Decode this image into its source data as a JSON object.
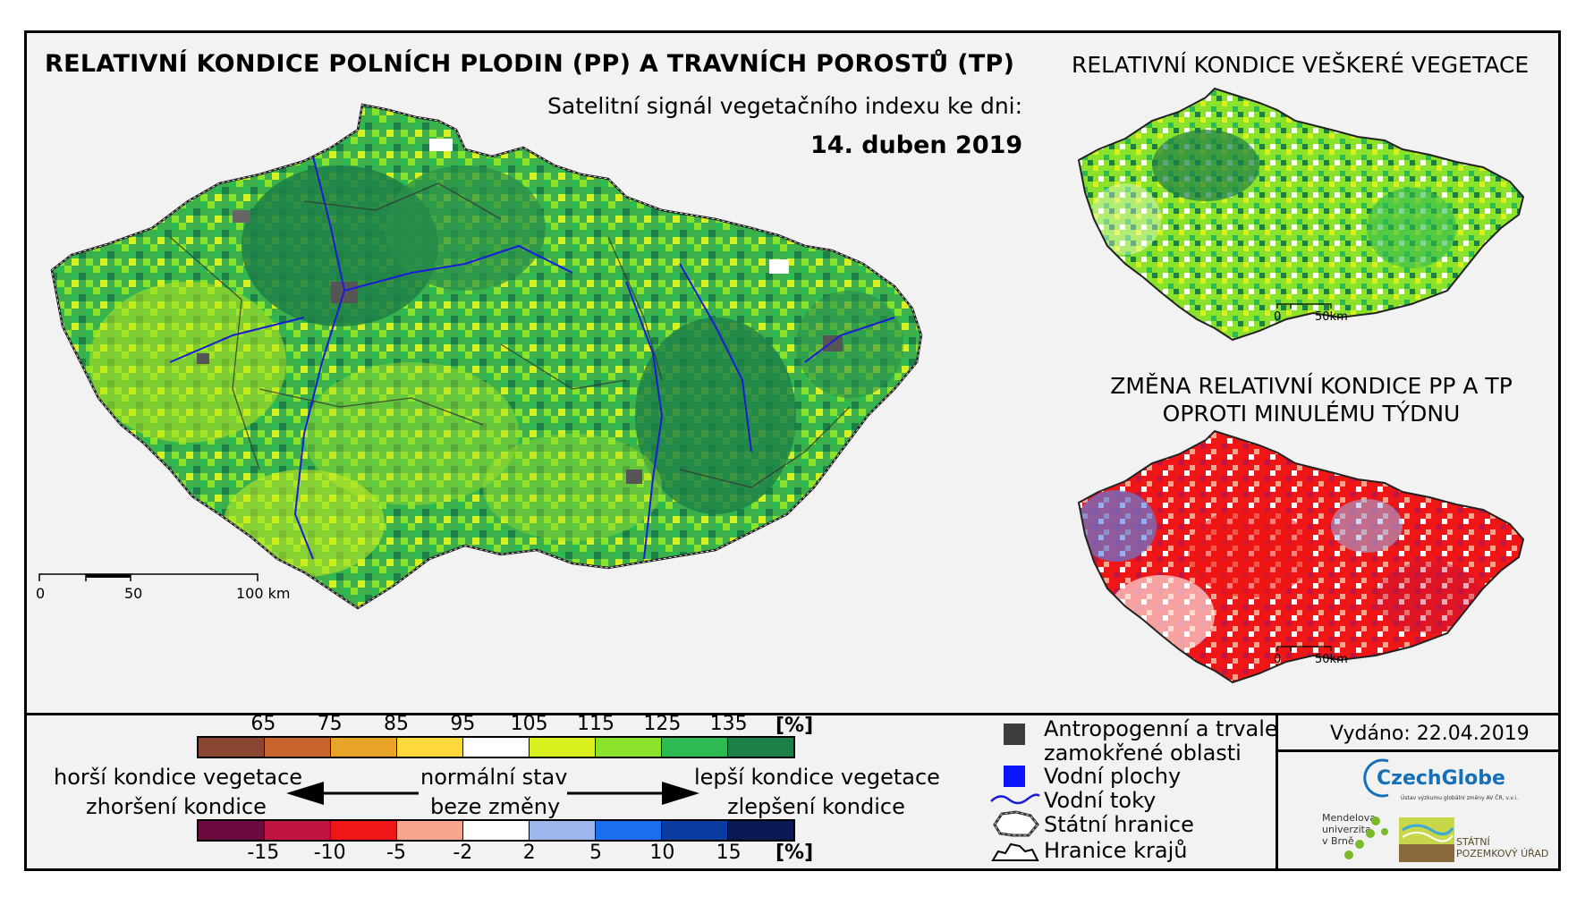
{
  "header": {
    "main_title": "RELATIVNÍ KONDICE POLNÍCH PLODIN (PP) A TRAVNÍCH POROSTŮ (TP)",
    "subtitle": "Satelitní signál vegetačního indexu ke dni:",
    "date": "14. duben 2019"
  },
  "inset_vegetation": {
    "title": "RELATIVNÍ KONDICE VEŠKERÉ VEGETACE",
    "scale": [
      "0",
      "50km"
    ]
  },
  "inset_change": {
    "title": "ZMĚNA RELATIVNÍ KONDICE PP A TP OPROTI MINULÉMU TÝDNU",
    "scale": [
      "0",
      "50km"
    ]
  },
  "main_map": {
    "scale": [
      "0",
      "50",
      "100 km"
    ]
  },
  "condition_legend": {
    "unit": "[%]",
    "ticks": [
      "65",
      "75",
      "85",
      "95",
      "105",
      "115",
      "125",
      "135"
    ],
    "colors": [
      "#8b4533",
      "#c8642d",
      "#e8a428",
      "#ffd83c",
      "#ffffff",
      "#d8f01e",
      "#8ae22a",
      "#2eba52",
      "#1d7f48"
    ]
  },
  "change_legend": {
    "unit": "[%]",
    "ticks": [
      "-15",
      "-10",
      "-5",
      "-2",
      "2",
      "5",
      "10",
      "15"
    ],
    "colors": [
      "#6b0a3e",
      "#c01442",
      "#ee1616",
      "#f7a58c",
      "#ffffff",
      "#9db6ec",
      "#1a6ef0",
      "#0a3ca2",
      "#0b1a55"
    ]
  },
  "descriptions": {
    "worse_1": "horší kondice vegetace",
    "worse_2": "zhoršení kondice",
    "normal_1": "normální stav",
    "normal_2": "beze změny",
    "better_1": "lepší kondice vegetace",
    "better_2": "zlepšení kondice"
  },
  "symbols": {
    "anthropogenic_1": "Antropogenní a trvale",
    "anthropogenic_2": "zamokřené oblasti",
    "water_bodies": "Vodní plochy",
    "water_courses": "Vodní toky",
    "state_border": "Státní hranice",
    "region_border": "Hranice krajů",
    "colors": {
      "anthropogenic": "#3c3c3c",
      "water_bodies": "#0a14ff",
      "water_courses": "#1c1cd8"
    }
  },
  "issued": "Vydáno: 22.04.2019",
  "logos": {
    "czechglobe": "CzechGlobe",
    "czechglobe_sub": "Ústav výzkumu globální změny AV ČR, v.v.i.",
    "mendel": [
      "Mendelova",
      "univerzita",
      "v Brně"
    ],
    "spu": [
      "STÁTNÍ",
      "POZEMKOVÝ ÚŘAD"
    ]
  }
}
